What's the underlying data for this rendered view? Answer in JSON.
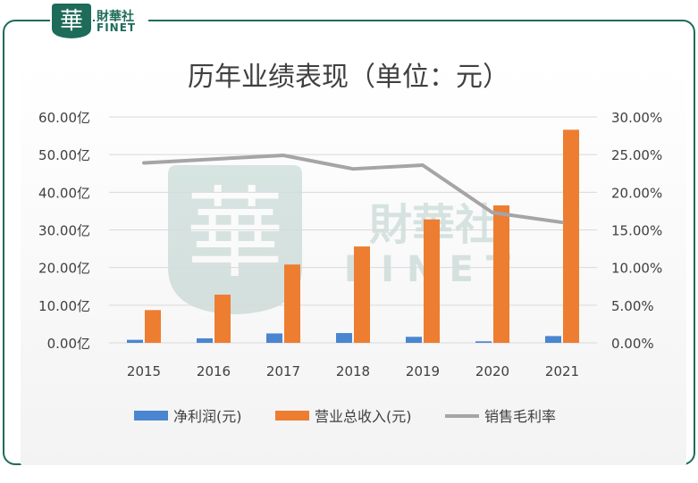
{
  "logo": {
    "glyph": "華",
    "name_cn": "財華社",
    "name_en": "FINET"
  },
  "watermark": {
    "glyph": "華",
    "name_cn": "財華社",
    "name_en": "FINET"
  },
  "colors": {
    "brand": "#1e6b5a",
    "net_profit": "#4a86d0",
    "revenue": "#ed7d31",
    "margin": "#a5a5a5"
  },
  "chart_data": {
    "type": "bar",
    "title": "历年业绩表现（单位：元）",
    "categories": [
      "2015",
      "2016",
      "2017",
      "2018",
      "2019",
      "2020",
      "2021"
    ],
    "y_left": {
      "ticks": [
        "0.00亿",
        "10.00亿",
        "20.00亿",
        "30.00亿",
        "40.00亿",
        "50.00亿",
        "60.00亿"
      ],
      "ylim": [
        0,
        60
      ]
    },
    "y_right": {
      "ticks": [
        "0.00%",
        "5.00%",
        "10.00%",
        "15.00%",
        "20.00%",
        "25.00%",
        "30.00%"
      ],
      "ylim": [
        0,
        30
      ]
    },
    "series": [
      {
        "name": "净利润(元)",
        "kind": "bar",
        "axis": "left",
        "values": [
          0.8,
          1.2,
          2.5,
          2.6,
          1.6,
          0.4,
          1.8
        ]
      },
      {
        "name": "营业总收入(元)",
        "kind": "bar",
        "axis": "left",
        "values": [
          8.7,
          12.8,
          20.8,
          25.6,
          32.8,
          36.5,
          56.6
        ]
      },
      {
        "name": "销售毛利率",
        "kind": "line",
        "axis": "right",
        "values": [
          23.9,
          24.4,
          24.9,
          23.1,
          23.6,
          17.3,
          16.0
        ]
      }
    ],
    "legend_position": "bottom",
    "grid": true
  }
}
